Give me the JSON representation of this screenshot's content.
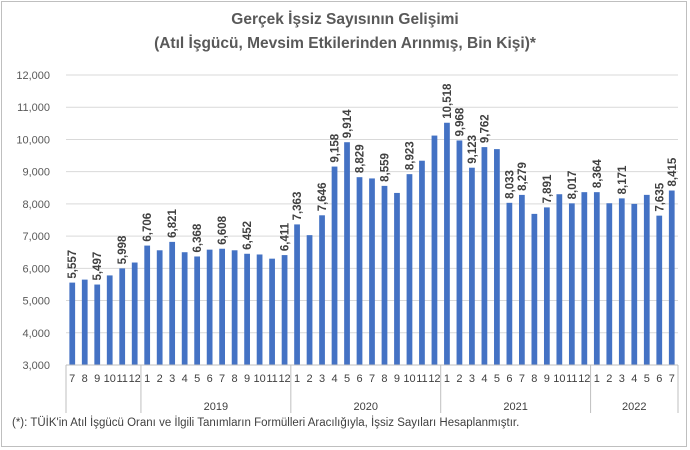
{
  "chart_data": {
    "type": "bar",
    "title": "Gerçek İşsiz Sayısının Gelişimi",
    "subtitle": "(Atıl İşgücü, Mevsim Etkilerinden Arınmış, Bin Kişi)*",
    "xlabel": "",
    "ylabel": "",
    "ylim": [
      3000,
      12000
    ],
    "yticks": [
      "3,000",
      "4,000",
      "5,000",
      "6,000",
      "7,000",
      "8,000",
      "9,000",
      "10,000",
      "11,000",
      "12,000"
    ],
    "grid": true,
    "color": "#4472C4",
    "categories": [
      "7",
      "8",
      "9",
      "10",
      "11",
      "12",
      "1",
      "2",
      "3",
      "4",
      "5",
      "6",
      "7",
      "8",
      "9",
      "10",
      "11",
      "12",
      "1",
      "2",
      "3",
      "4",
      "5",
      "6",
      "7",
      "8",
      "9",
      "10",
      "11",
      "12",
      "1",
      "2",
      "3",
      "4",
      "5",
      "6",
      "7",
      "8",
      "9",
      "10",
      "11",
      "12",
      "1",
      "2",
      "3",
      "4",
      "5",
      "6",
      "7"
    ],
    "values": [
      5557,
      5650,
      5497,
      5780,
      5998,
      6180,
      6706,
      6560,
      6821,
      6500,
      6368,
      6580,
      6608,
      6560,
      6452,
      6430,
      6300,
      6411,
      7363,
      7030,
      7646,
      9158,
      9914,
      8829,
      8790,
      8559,
      8340,
      8923,
      9340,
      10120,
      10518,
      9968,
      9123,
      9762,
      9700,
      8033,
      8279,
      7690,
      7891,
      8300,
      8017,
      8364,
      8364,
      8020,
      8171,
      8000,
      8280,
      7635,
      8415
    ],
    "data_labels": [
      "5,557",
      "",
      "5,497",
      "",
      "5,998",
      "",
      "6,706",
      "",
      "6,821",
      "",
      "6,368",
      "",
      "6,608",
      "",
      "6,452",
      "",
      "",
      "6,411",
      "7,363",
      "",
      "7,646",
      "9,158",
      "9,914",
      "8,829",
      "",
      "8,559",
      "",
      "8,923",
      "",
      "",
      "10,518",
      "9,968",
      "9,123",
      "9,762",
      "",
      "8,033",
      "8,279",
      "",
      "7,891",
      "",
      "8,017",
      "",
      "8,364",
      "",
      "8,171",
      "",
      "",
      "7,635",
      "8,415"
    ],
    "year_groups": [
      {
        "label": "",
        "start": 0,
        "end": 5
      },
      {
        "label": "2019",
        "start": 6,
        "end": 17
      },
      {
        "label": "2020",
        "start": 18,
        "end": 29
      },
      {
        "label": "2021",
        "start": 30,
        "end": 41
      },
      {
        "label": "2022",
        "start": 42,
        "end": 48
      }
    ]
  },
  "footnote": "(*): TÜİK'in Atıl İşgücü Oranı ve İlgili Tanımların Formülleri Aracılığıyla, İşsiz Sayıları Hesaplanmıştır."
}
